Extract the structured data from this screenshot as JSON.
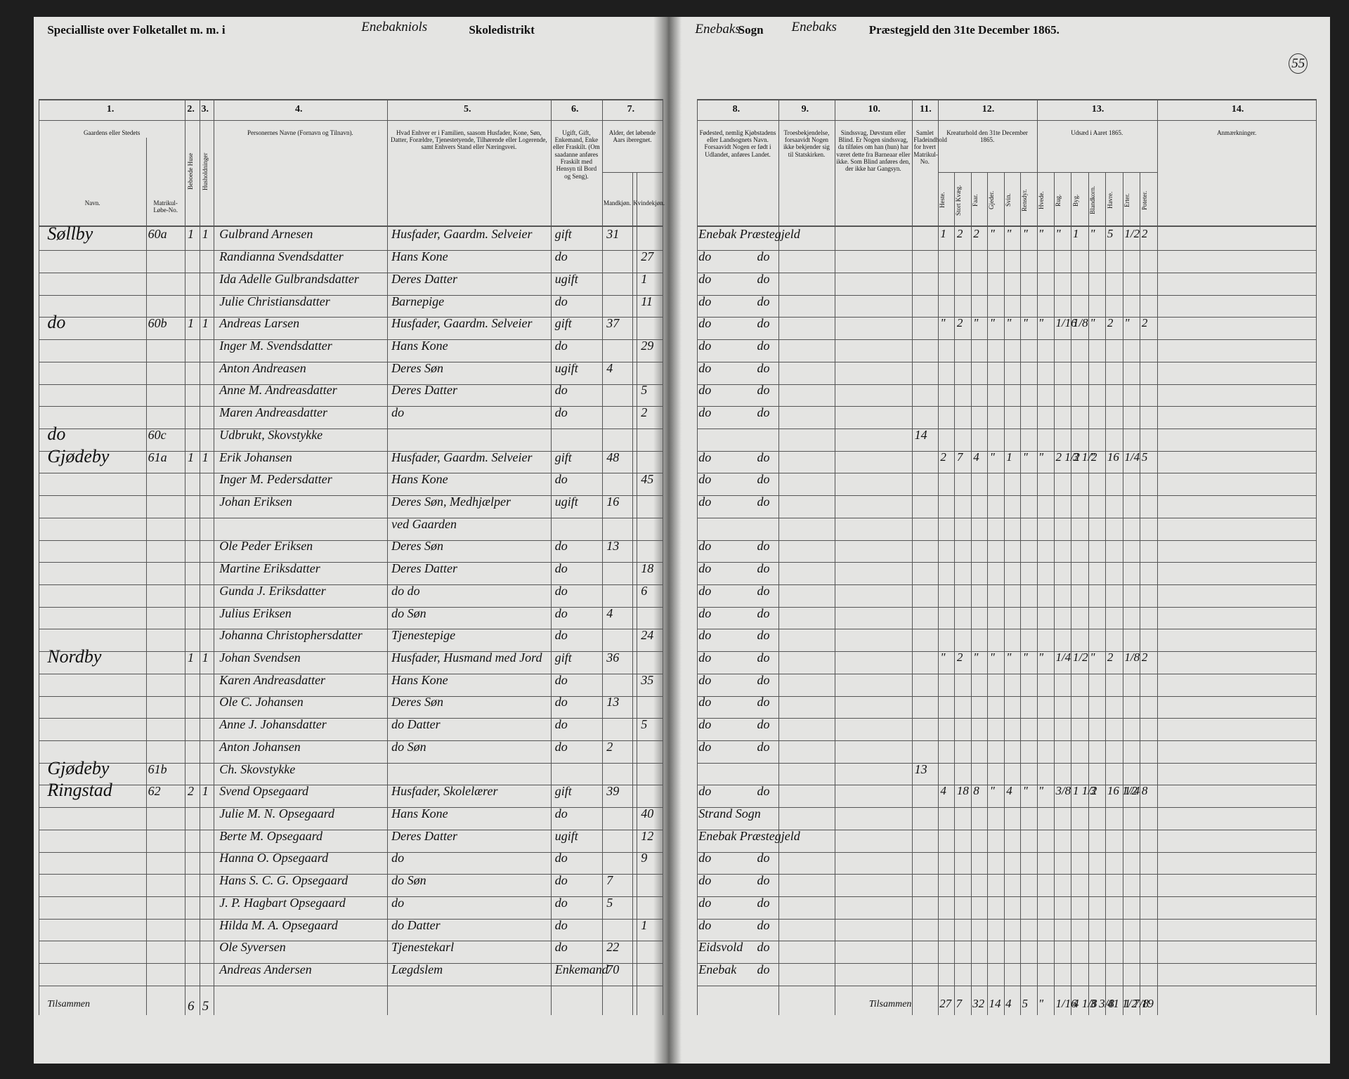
{
  "header": {
    "left_pre": "Specialliste over Folketallet m. m. i",
    "left_hand": "Enebakniols",
    "left_post": "Skoledistrikt",
    "right_hand1": "Enebaks",
    "right_sogn": "Sogn",
    "right_hand2": "Enebaks",
    "right_post": "Præstegjeld den 31te December 1865.",
    "page_no": "55"
  },
  "columns": [
    {
      "num": "1.",
      "heading": "Gaardens eller Stedets",
      "sub": [
        "Navn.",
        "Matrikul-Løbe-No."
      ]
    },
    {
      "num": "2.",
      "heading": "Beboede Huse"
    },
    {
      "num": "3.",
      "heading": "Husholdninger"
    },
    {
      "num": "4.",
      "heading": "Personernes Navne (Fornavn og Tilnavn)."
    },
    {
      "num": "5.",
      "heading": "Hvad Enhver er i Familien, saasom Husfader, Kone, Søn, Datter, Forældre, Tjenestetyende, Tilhørende eller Logerende, samt Enhvers Stand eller Næringsvei."
    },
    {
      "num": "6.",
      "heading": "Ugift, Gift, Enkemand, Enke eller Fraskilt. (Om saadanne anføres Fraskilt med Hensyn til Bord og Seng)."
    },
    {
      "num": "7.",
      "heading": "Alder, det løbende Aars iberegnet.",
      "sub": [
        "Mandkjøn.",
        "Kvindekjøn."
      ]
    },
    {
      "num": "8.",
      "heading": "Fødested, nemlig Kjøbstadens eller Landsognets Navn. Forsaavidt Nogen er født i Udlandet, anføres Landet."
    },
    {
      "num": "9.",
      "heading": "Troesbekjendelse, forsaavidt Nogen ikke bekjender sig til Statskirken."
    },
    {
      "num": "10.",
      "heading": "Sindssvag, Døvstum eller Blind. Er Nogen sindssvag, da tilføies om han (hun) har været dette fra Barneaar eller ikke. Som Blind anføres den, der ikke har Gangsyn."
    },
    {
      "num": "11.",
      "heading": "Samlet Fladeindhold for hvert Matrikul-No."
    },
    {
      "num": "12.",
      "heading": "Kreaturhold den 31te December 1865.",
      "sub": [
        "Heste.",
        "Stort Kvæg.",
        "Faar.",
        "Gjeder.",
        "Svin.",
        "Rensdyr."
      ]
    },
    {
      "num": "13.",
      "heading": "Udsæd i Aaret 1865.",
      "sub": [
        "Hvede.",
        "Rug.",
        "Byg.",
        "Blandkorn.",
        "Havre.",
        "Erter.",
        "Poteter."
      ]
    },
    {
      "num": "14.",
      "heading": "Anmærkninger."
    }
  ],
  "rows": [
    [
      "Søllby",
      "60a",
      "1",
      "1",
      "Gulbrand Arnesen",
      "Husfader, Gaardm. Selveier",
      "gift",
      "31",
      null,
      "Enebak Præstegjeld",
      null,
      null,
      [
        "1",
        "2",
        "2",
        "\"",
        "\"",
        "\"",
        "\"",
        "\"",
        "1",
        "\"",
        "5",
        "1/2",
        "2"
      ]
    ],
    [
      null,
      null,
      null,
      null,
      "Randianna Svendsdatter",
      "Hans Kone",
      "do",
      null,
      "27",
      "do",
      "do",
      null,
      null
    ],
    [
      null,
      null,
      null,
      null,
      "Ida Adelle Gulbrandsdatter",
      "Deres Datter",
      "ugift",
      null,
      "1",
      "do",
      "do",
      null,
      null
    ],
    [
      null,
      null,
      null,
      null,
      "Julie Christiansdatter",
      "Barnepige",
      "do",
      null,
      "11",
      "do",
      "do",
      null,
      null
    ],
    [
      "do",
      "60b",
      "1",
      "1",
      "Andreas Larsen",
      "Husfader, Gaardm. Selveier",
      "gift",
      "37",
      null,
      "do",
      "do",
      null,
      [
        "\"",
        "2",
        "\"",
        "\"",
        "\"",
        "\"",
        "\"",
        "1/16",
        "1/8",
        "\"",
        "2",
        "\"",
        "2"
      ]
    ],
    [
      null,
      null,
      null,
      null,
      "Inger M. Svendsdatter",
      "Hans Kone",
      "do",
      null,
      "29",
      "do",
      "do",
      null,
      null
    ],
    [
      null,
      null,
      null,
      null,
      "Anton Andreasen",
      "Deres Søn",
      "ugift",
      "4",
      null,
      "do",
      "do",
      null,
      null
    ],
    [
      null,
      null,
      null,
      null,
      "Anne M. Andreasdatter",
      "Deres Datter",
      "do",
      null,
      "5",
      "do",
      "do",
      null,
      null
    ],
    [
      null,
      null,
      null,
      null,
      "Maren Andreasdatter",
      "do",
      "do",
      null,
      "2",
      "do",
      "do",
      null,
      null
    ],
    [
      "do",
      "60c",
      null,
      null,
      "Udbrukt, Skovstykke",
      null,
      null,
      null,
      null,
      null,
      null,
      "14",
      null
    ],
    [
      "Gjødeby",
      "61a",
      "1",
      "1",
      "Erik Johansen",
      "Husfader, Gaardm. Selveier",
      "gift",
      "48",
      null,
      "do",
      "do",
      null,
      [
        "2",
        "7",
        "4",
        "\"",
        "1",
        "\"",
        "\"",
        "2 1/2",
        "3 1/2",
        "\"",
        "16",
        "1/4",
        "5"
      ]
    ],
    [
      null,
      null,
      null,
      null,
      "Inger M. Pedersdatter",
      "Hans Kone",
      "do",
      null,
      "45",
      "do",
      "do",
      null,
      null
    ],
    [
      null,
      null,
      null,
      null,
      "Johan Eriksen",
      "Deres Søn, Medhjælper",
      "ugift",
      "16",
      null,
      "do",
      "do",
      null,
      null
    ],
    [
      null,
      null,
      null,
      null,
      null,
      "ved Gaarden",
      null,
      null,
      null,
      null,
      null,
      null,
      null
    ],
    [
      null,
      null,
      null,
      null,
      "Ole Peder Eriksen",
      "Deres Søn",
      "do",
      "13",
      null,
      "do",
      "do",
      null,
      null
    ],
    [
      null,
      null,
      null,
      null,
      "Martine Eriksdatter",
      "Deres Datter",
      "do",
      null,
      "18",
      "do",
      "do",
      null,
      null
    ],
    [
      null,
      null,
      null,
      null,
      "Gunda J. Eriksdatter",
      "do do",
      "do",
      null,
      "6",
      "do",
      "do",
      null,
      null
    ],
    [
      null,
      null,
      null,
      null,
      "Julius Eriksen",
      "do Søn",
      "do",
      "4",
      null,
      "do",
      "do",
      null,
      null
    ],
    [
      null,
      null,
      null,
      null,
      "Johanna Christophersdatter",
      "Tjenestepige",
      "do",
      null,
      "24",
      "do",
      "do",
      null,
      null
    ],
    [
      "Nordby",
      null,
      "1",
      "1",
      "Johan Svendsen",
      "Husfader, Husmand med Jord",
      "gift",
      "36",
      null,
      "do",
      "do",
      null,
      [
        "\"",
        "2",
        "\"",
        "\"",
        "\"",
        "\"",
        "\"",
        "1/4",
        "1/2",
        "\"",
        "2",
        "1/8",
        "2"
      ]
    ],
    [
      null,
      null,
      null,
      null,
      "Karen Andreasdatter",
      "Hans Kone",
      "do",
      null,
      "35",
      "do",
      "do",
      null,
      null
    ],
    [
      null,
      null,
      null,
      null,
      "Ole C. Johansen",
      "Deres Søn",
      "do",
      "13",
      null,
      "do",
      "do",
      null,
      null
    ],
    [
      null,
      null,
      null,
      null,
      "Anne J. Johansdatter",
      "do Datter",
      "do",
      null,
      "5",
      "do",
      "do",
      null,
      null
    ],
    [
      null,
      null,
      null,
      null,
      "Anton Johansen",
      "do Søn",
      "do",
      "2",
      null,
      "do",
      "do",
      null,
      null
    ],
    [
      "Gjødeby",
      "61b",
      null,
      null,
      "Ch. Skovstykke",
      null,
      null,
      null,
      null,
      null,
      null,
      "13",
      null
    ],
    [
      "Ringstad",
      "62",
      "2",
      "1",
      "Svend Opsegaard",
      "Husfader, Skolelærer",
      "gift",
      "39",
      null,
      "do",
      "do",
      null,
      [
        "4",
        "18",
        "8",
        "\"",
        "4",
        "\"",
        "\"",
        "3/8",
        "1 1/2",
        "3",
        "16 1/2",
        "1/4",
        "8"
      ]
    ],
    [
      null,
      null,
      null,
      null,
      "Julie M. N. Opsegaard",
      "Hans Kone",
      "do",
      null,
      "40",
      "Strand Sogn",
      null,
      null,
      null
    ],
    [
      null,
      null,
      null,
      null,
      "Berte M. Opsegaard",
      "Deres Datter",
      "ugift",
      null,
      "12",
      "Enebak Præstegjeld",
      null,
      null,
      null
    ],
    [
      null,
      null,
      null,
      null,
      "Hanna O. Opsegaard",
      "do",
      "do",
      null,
      "9",
      "do",
      "do",
      null,
      null
    ],
    [
      null,
      null,
      null,
      null,
      "Hans S. C. G. Opsegaard",
      "do Søn",
      "do",
      "7",
      null,
      "do",
      "do",
      null,
      null
    ],
    [
      null,
      null,
      null,
      null,
      "J. P. Hagbart Opsegaard",
      "do",
      "do",
      "5",
      null,
      "do",
      "do",
      null,
      null
    ],
    [
      null,
      null,
      null,
      null,
      "Hilda M. A. Opsegaard",
      "do Datter",
      "do",
      null,
      "1",
      "do",
      "do",
      null,
      null
    ],
    [
      null,
      null,
      null,
      null,
      "Ole Syversen",
      "Tjenestekarl",
      "do",
      "22",
      null,
      "Eidsvold",
      "do",
      null,
      null
    ],
    [
      null,
      null,
      null,
      null,
      "Andreas Andersen",
      "Lægdslem",
      "Enkemand",
      "70",
      null,
      "Enebak",
      "do",
      null,
      null
    ]
  ],
  "totals": {
    "label_left": "Tilsammen",
    "houses": "6",
    "households": "5",
    "label_right": "Tilsammen",
    "stock": [
      "27",
      "7",
      "32",
      "14",
      "4",
      "5",
      "\"",
      "1/16",
      "4 1/8",
      "3 3/8",
      "41 1/2",
      "1 7/8",
      "19"
    ]
  }
}
